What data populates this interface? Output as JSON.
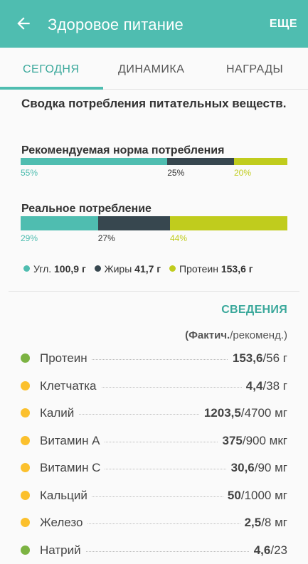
{
  "appbar": {
    "title": "Здоровое питание",
    "more_label": "ЕЩЕ",
    "back_icon": "arrow-left-icon"
  },
  "tabs": [
    {
      "label": "СЕГОДНЯ",
      "active": true
    },
    {
      "label": "ДИНАМИКА",
      "active": false
    },
    {
      "label": "НАГРАДЫ",
      "active": false
    }
  ],
  "summary": {
    "title": "Сводка потребления питательных веществ."
  },
  "colors": {
    "carbs": "#4fbdb0",
    "fat": "#37474f",
    "protein": "#c0cc1d",
    "accent": "#3aa89b",
    "dot_green": "#7cb342",
    "dot_yellow": "#fbc02d"
  },
  "recommended": {
    "label": "Рекомендуемая норма потребления",
    "carbs_pct": 55,
    "fat_pct": 25,
    "protein_pct": 20,
    "carbs_text": "55%",
    "fat_text": "25%",
    "protein_text": "20%"
  },
  "actual": {
    "label": "Реальное потребление",
    "carbs_pct": 29,
    "fat_pct": 27,
    "protein_pct": 44,
    "carbs_text": "29%",
    "fat_text": "27%",
    "protein_text": "44%"
  },
  "legend": {
    "carbs_label": "Угл.",
    "carbs_value": "100,9 г",
    "fat_label": "Жиры",
    "fat_value": "41,7 г",
    "protein_label": "Протеин",
    "protein_value": "153,6 г"
  },
  "details": {
    "link_label": "СВЕДЕНИЯ",
    "sub_bold": "(Фактич.",
    "sub_rest": "/рекоменд.)"
  },
  "nutrients": [
    {
      "name": "Протеин",
      "actual": "153,6",
      "rest": "/56 г",
      "status": "green"
    },
    {
      "name": "Клетчатка",
      "actual": "4,4",
      "rest": "/38 г",
      "status": "yellow"
    },
    {
      "name": "Калий",
      "actual": "1203,5",
      "rest": "/4700 мг",
      "status": "yellow"
    },
    {
      "name": "Витамин А",
      "actual": "375",
      "rest": "/900 мкг",
      "status": "yellow"
    },
    {
      "name": "Витамин С",
      "actual": "30,6",
      "rest": "/90 мг",
      "status": "yellow"
    },
    {
      "name": "Кальций",
      "actual": "50",
      "rest": "/1000 мг",
      "status": "yellow"
    },
    {
      "name": "Железо",
      "actual": "2,5",
      "rest": "/8 мг",
      "status": "yellow"
    },
    {
      "name": "Натрий",
      "actual": "4,6",
      "rest": "/23",
      "status": "green"
    }
  ]
}
